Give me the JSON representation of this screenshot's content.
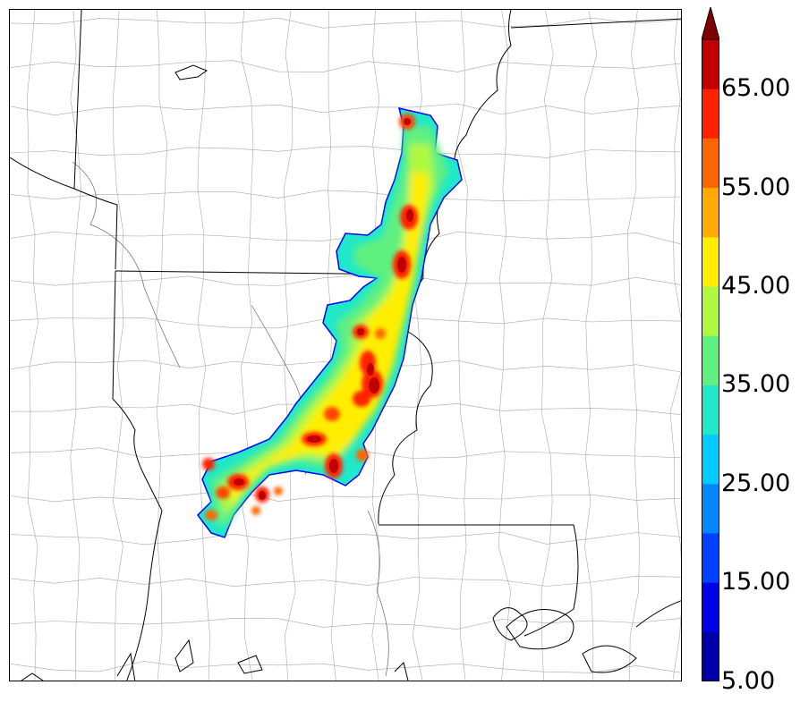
{
  "colorbar": {
    "min": 5,
    "max": 70,
    "step": 5,
    "extend": "max",
    "tick_labels": [
      "5.00",
      "15.00",
      "25.00",
      "35.00",
      "45.00",
      "55.00",
      "65.00"
    ],
    "tick_values": [
      5,
      15,
      25,
      35,
      45,
      55,
      65
    ],
    "colors": [
      "#0000a8",
      "#0000e6",
      "#0040ff",
      "#0088ff",
      "#00ccff",
      "#20e8c8",
      "#60f080",
      "#b0f840",
      "#ffee00",
      "#ffaa00",
      "#ff6600",
      "#ff2200",
      "#c00000"
    ],
    "extend_color": "#800000"
  },
  "map": {
    "background": "#ffffff",
    "state_border_color": "#000000",
    "county_border_color": "#999999"
  }
}
